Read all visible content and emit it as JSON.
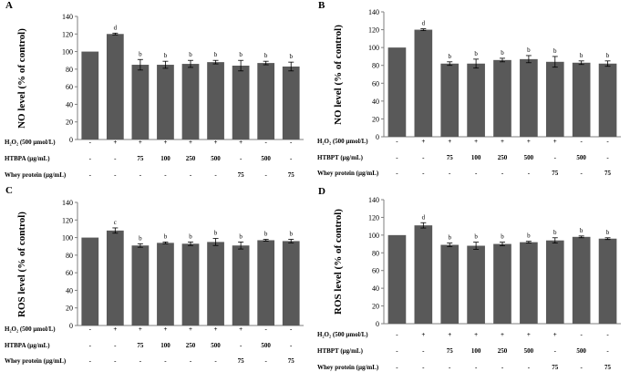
{
  "bar_color": "#595959",
  "chart_data": [
    {
      "type": "bar",
      "panel_label": "A",
      "ylabel": "NO level (% of control)",
      "ylim": [
        0,
        140
      ],
      "yticks": [
        0,
        20,
        40,
        60,
        80,
        100,
        120,
        140
      ],
      "values": [
        100,
        120,
        85,
        85,
        86,
        88,
        84,
        87,
        83
      ],
      "errors": [
        0,
        1.0,
        6,
        4,
        4,
        2,
        6,
        2,
        5
      ],
      "letters": [
        "",
        "d",
        "b",
        "b",
        "b",
        "b",
        "b",
        "b",
        "b"
      ],
      "treatment_rows": [
        {
          "label": "H₂O₂ (500 μmol/L)",
          "cells": [
            "-",
            "+",
            "+",
            "+",
            "+",
            "+",
            "+",
            "-",
            "-"
          ]
        },
        {
          "label": "HTBPA (μg/mL)",
          "cells": [
            "-",
            "-",
            "75",
            "100",
            "250",
            "500",
            "-",
            "500",
            "-"
          ]
        },
        {
          "label": "Whey protein (μg/mL)",
          "cells": [
            "-",
            "-",
            "-",
            "-",
            "-",
            "-",
            "75",
            "-",
            "75"
          ]
        }
      ]
    },
    {
      "type": "bar",
      "panel_label": "B",
      "ylabel": "NO level (% of control)",
      "ylim": [
        0,
        140
      ],
      "yticks": [
        0,
        20,
        40,
        60,
        80,
        100,
        120,
        140
      ],
      "values": [
        100,
        120,
        82,
        82,
        86,
        87,
        84,
        83,
        82
      ],
      "errors": [
        0,
        1.0,
        2,
        5,
        2,
        4,
        6,
        2,
        3
      ],
      "letters": [
        "",
        "d",
        "b",
        "b",
        "b",
        "b",
        "b",
        "b",
        "b"
      ],
      "treatment_rows": [
        {
          "label": "H₂O₂ (500 μmol/L)",
          "cells": [
            "-",
            "+",
            "+",
            "+",
            "+",
            "+",
            "+",
            "-",
            "-"
          ]
        },
        {
          "label": "HTBPT (μg/mL)",
          "cells": [
            "-",
            "-",
            "75",
            "100",
            "250",
            "500",
            "-",
            "500",
            "-"
          ]
        },
        {
          "label": "Whey protein (μg/mL)",
          "cells": [
            "-",
            "-",
            "-",
            "-",
            "-",
            "-",
            "75",
            "-",
            "75"
          ]
        }
      ]
    },
    {
      "type": "bar",
      "panel_label": "C",
      "ylabel": "ROS level (% of control)",
      "ylim": [
        0,
        140
      ],
      "yticks": [
        0,
        20,
        40,
        60,
        80,
        100,
        120,
        140
      ],
      "values": [
        100,
        108,
        91,
        94,
        93,
        95,
        91,
        97,
        96
      ],
      "errors": [
        0,
        3,
        2,
        1,
        2,
        4,
        4,
        1,
        2
      ],
      "letters": [
        "",
        "c",
        "b",
        "b",
        "b",
        "b",
        "b",
        "b",
        "b"
      ],
      "treatment_rows": [
        {
          "label": "H₂O₂ (500 μmol/L)",
          "cells": [
            "-",
            "+",
            "+",
            "+",
            "+",
            "+",
            "+",
            "-",
            "-"
          ]
        },
        {
          "label": "HTBPA (μg/mL)",
          "cells": [
            "-",
            "-",
            "75",
            "100",
            "250",
            "500",
            "-",
            "500",
            "-"
          ]
        },
        {
          "label": "Whey protein (μg/mL)",
          "cells": [
            "-",
            "-",
            "-",
            "-",
            "-",
            "-",
            "75",
            "-",
            "75"
          ]
        }
      ]
    },
    {
      "type": "bar",
      "panel_label": "D",
      "ylabel": "ROS level (% of control)",
      "ylim": [
        0,
        140
      ],
      "yticks": [
        0,
        20,
        40,
        60,
        80,
        100,
        120,
        140
      ],
      "values": [
        100,
        111,
        89,
        88,
        90,
        92,
        94,
        98,
        96
      ],
      "errors": [
        0,
        3,
        2,
        4,
        2,
        1,
        3,
        1,
        1
      ],
      "letters": [
        "",
        "d",
        "b",
        "b",
        "b",
        "b",
        "b",
        "b",
        "b"
      ],
      "treatment_rows": [
        {
          "label": "H₂O₂ (500 μmol/L)",
          "cells": [
            "-",
            "+",
            "+",
            "+",
            "+",
            "+",
            "+",
            "-",
            "-"
          ]
        },
        {
          "label": "HTBPT (μg/mL)",
          "cells": [
            "-",
            "-",
            "75",
            "100",
            "250",
            "500",
            "-",
            "500",
            "-"
          ]
        },
        {
          "label": "Whey protein (μg/mL)",
          "cells": [
            "-",
            "-",
            "-",
            "-",
            "-",
            "-",
            "75",
            "-",
            "75"
          ]
        }
      ]
    }
  ]
}
